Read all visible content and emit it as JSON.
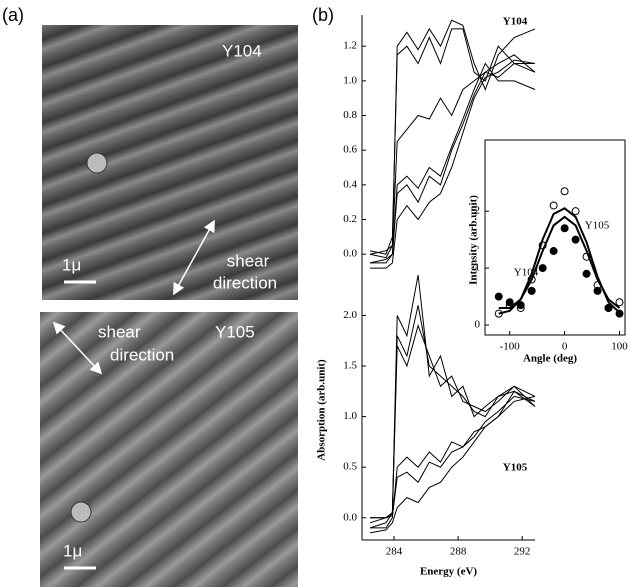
{
  "panel_a": {
    "label": "(a)",
    "images": [
      {
        "sample": "Y104",
        "shear": [
          "shear",
          "direction"
        ],
        "scale": "1μ"
      },
      {
        "sample": "Y105",
        "shear": [
          "shear",
          "direction"
        ],
        "scale": "1μ"
      }
    ]
  },
  "panel_b": {
    "label": "(b)"
  },
  "chart_data": [
    {
      "type": "line",
      "label": "Y104",
      "x": [
        282.5,
        283.5,
        283.9,
        284.2,
        284.8,
        285.5,
        286.2,
        286.9,
        287.6,
        288.3,
        289,
        289.7,
        290.5,
        291.5,
        292.8
      ],
      "series": [
        {
          "color": "#000",
          "values": [
            0.0,
            -0.02,
            0.05,
            1.2,
            1.28,
            1.18,
            1.3,
            1.2,
            1.35,
            1.32,
            1.1,
            0.95,
            1.15,
            1.25,
            1.3
          ]
        },
        {
          "color": "#000",
          "values": [
            0.02,
            0.0,
            0.1,
            1.15,
            1.2,
            1.1,
            1.25,
            1.1,
            1.3,
            1.3,
            1.05,
            1.0,
            1.2,
            1.1,
            1.05
          ]
        },
        {
          "color": "#000",
          "values": [
            0.0,
            0.02,
            0.05,
            0.65,
            0.72,
            0.8,
            0.78,
            0.9,
            0.8,
            0.95,
            1.0,
            1.05,
            1.1,
            1.15,
            1.05
          ]
        },
        {
          "color": "#000",
          "values": [
            -0.05,
            -0.05,
            0.0,
            0.4,
            0.45,
            0.38,
            0.5,
            0.45,
            0.62,
            0.78,
            0.95,
            1.1,
            1.0,
            1.0,
            0.95
          ]
        },
        {
          "color": "#000",
          "values": [
            -0.05,
            -0.03,
            0.0,
            0.35,
            0.4,
            0.3,
            0.45,
            0.4,
            0.6,
            0.75,
            0.92,
            1.05,
            1.02,
            1.1,
            1.1
          ]
        },
        {
          "color": "#000",
          "values": [
            -0.08,
            -0.08,
            -0.05,
            0.2,
            0.28,
            0.2,
            0.3,
            0.35,
            0.5,
            0.7,
            0.9,
            1.02,
            1.05,
            1.12,
            1.1
          ]
        }
      ],
      "xlim": [
        282,
        292.8
      ],
      "ylim": [
        -0.12,
        1.38
      ],
      "yticks": [
        {
          "value": 0,
          "label": "0.0"
        },
        0.2,
        0.4,
        0.6,
        0.8,
        {
          "value": 1,
          "label": "1.0"
        },
        1.2
      ]
    },
    {
      "type": "line",
      "label": "Y105",
      "xlabel": "Energy (eV)",
      "ylabel": "Absorption (arb.unit)",
      "x": [
        282.5,
        283.5,
        283.9,
        284.2,
        284.8,
        285.5,
        286.2,
        286.9,
        287.6,
        288.3,
        289,
        289.7,
        290.5,
        291.5,
        292.8
      ],
      "series": [
        {
          "color": "#000",
          "values": [
            -0.1,
            -0.05,
            0.05,
            2.0,
            1.8,
            2.4,
            1.4,
            1.6,
            1.2,
            1.3,
            1.0,
            1.1,
            1.2,
            1.3,
            1.2
          ]
        },
        {
          "color": "#000",
          "values": [
            -0.05,
            0,
            0.05,
            1.8,
            1.6,
            2.1,
            1.5,
            1.4,
            1.3,
            1.2,
            1.05,
            1.0,
            1.2,
            1.25,
            1.15
          ]
        },
        {
          "color": "#000",
          "values": [
            0,
            0,
            0.05,
            1.7,
            1.5,
            1.9,
            1.6,
            1.3,
            1.4,
            1.15,
            1.1,
            1.05,
            1.15,
            1.3,
            1.1
          ]
        },
        {
          "color": "#000",
          "values": [
            -0.1,
            -0.1,
            0,
            0.5,
            0.6,
            0.5,
            0.65,
            0.55,
            0.75,
            0.7,
            0.85,
            0.9,
            1.0,
            1.25,
            1.1
          ]
        },
        {
          "color": "#000",
          "values": [
            0,
            0,
            0.02,
            0.4,
            0.45,
            0.35,
            0.55,
            0.5,
            0.65,
            0.7,
            0.8,
            0.95,
            1.05,
            1.2,
            1.15
          ]
        },
        {
          "color": "#000",
          "values": [
            -0.15,
            -0.12,
            -0.05,
            0.1,
            0.2,
            0.15,
            0.3,
            0.35,
            0.5,
            0.6,
            0.75,
            0.9,
            1.0,
            1.15,
            1.2
          ]
        }
      ],
      "xlim": [
        282,
        292.8
      ],
      "ylim": [
        -0.22,
        2.4
      ],
      "xticks": [
        284,
        288,
        292
      ],
      "yticks": [
        {
          "value": 0,
          "label": "0.0"
        },
        0.5,
        {
          "value": 1,
          "label": "1.0"
        },
        1.5,
        {
          "value": 2,
          "label": "2.0"
        }
      ]
    },
    {
      "type": "scatter",
      "xlabel": "Angle (deg)",
      "ylabel": "Intensity (arb.unit)",
      "annotations": [
        "Y105",
        "Y104"
      ],
      "x": [
        -120,
        -100,
        -80,
        -60,
        -40,
        -20,
        0,
        20,
        40,
        60,
        80,
        100
      ],
      "series": [
        {
          "marker": "circle-open",
          "color": "#000",
          "values": [
            0.2,
            0.35,
            0.3,
            0.8,
            1.4,
            2.1,
            2.35,
            2.0,
            1.2,
            0.7,
            0.3,
            0.4
          ]
        },
        {
          "marker": "circle-filled",
          "color": "#000",
          "values": [
            0.5,
            0.4,
            0.35,
            0.6,
            1.0,
            1.3,
            1.7,
            1.5,
            0.9,
            0.6,
            0.3,
            0.2
          ]
        },
        {
          "marker": "line",
          "color": "#000",
          "values": [
            0.2,
            0.25,
            0.45,
            0.9,
            1.5,
            1.95,
            2.05,
            1.9,
            1.45,
            0.85,
            0.4,
            0.22
          ]
        },
        {
          "marker": "line",
          "color": "#000",
          "values": [
            0.3,
            0.3,
            0.45,
            0.8,
            1.3,
            1.75,
            1.9,
            1.75,
            1.3,
            0.8,
            0.45,
            0.3
          ]
        }
      ],
      "xlim": [
        -145,
        110
      ],
      "ylim": [
        -0.175,
        3.25
      ],
      "xticks": [
        -100,
        0,
        100
      ],
      "yticks": [
        0,
        1,
        2
      ]
    }
  ]
}
